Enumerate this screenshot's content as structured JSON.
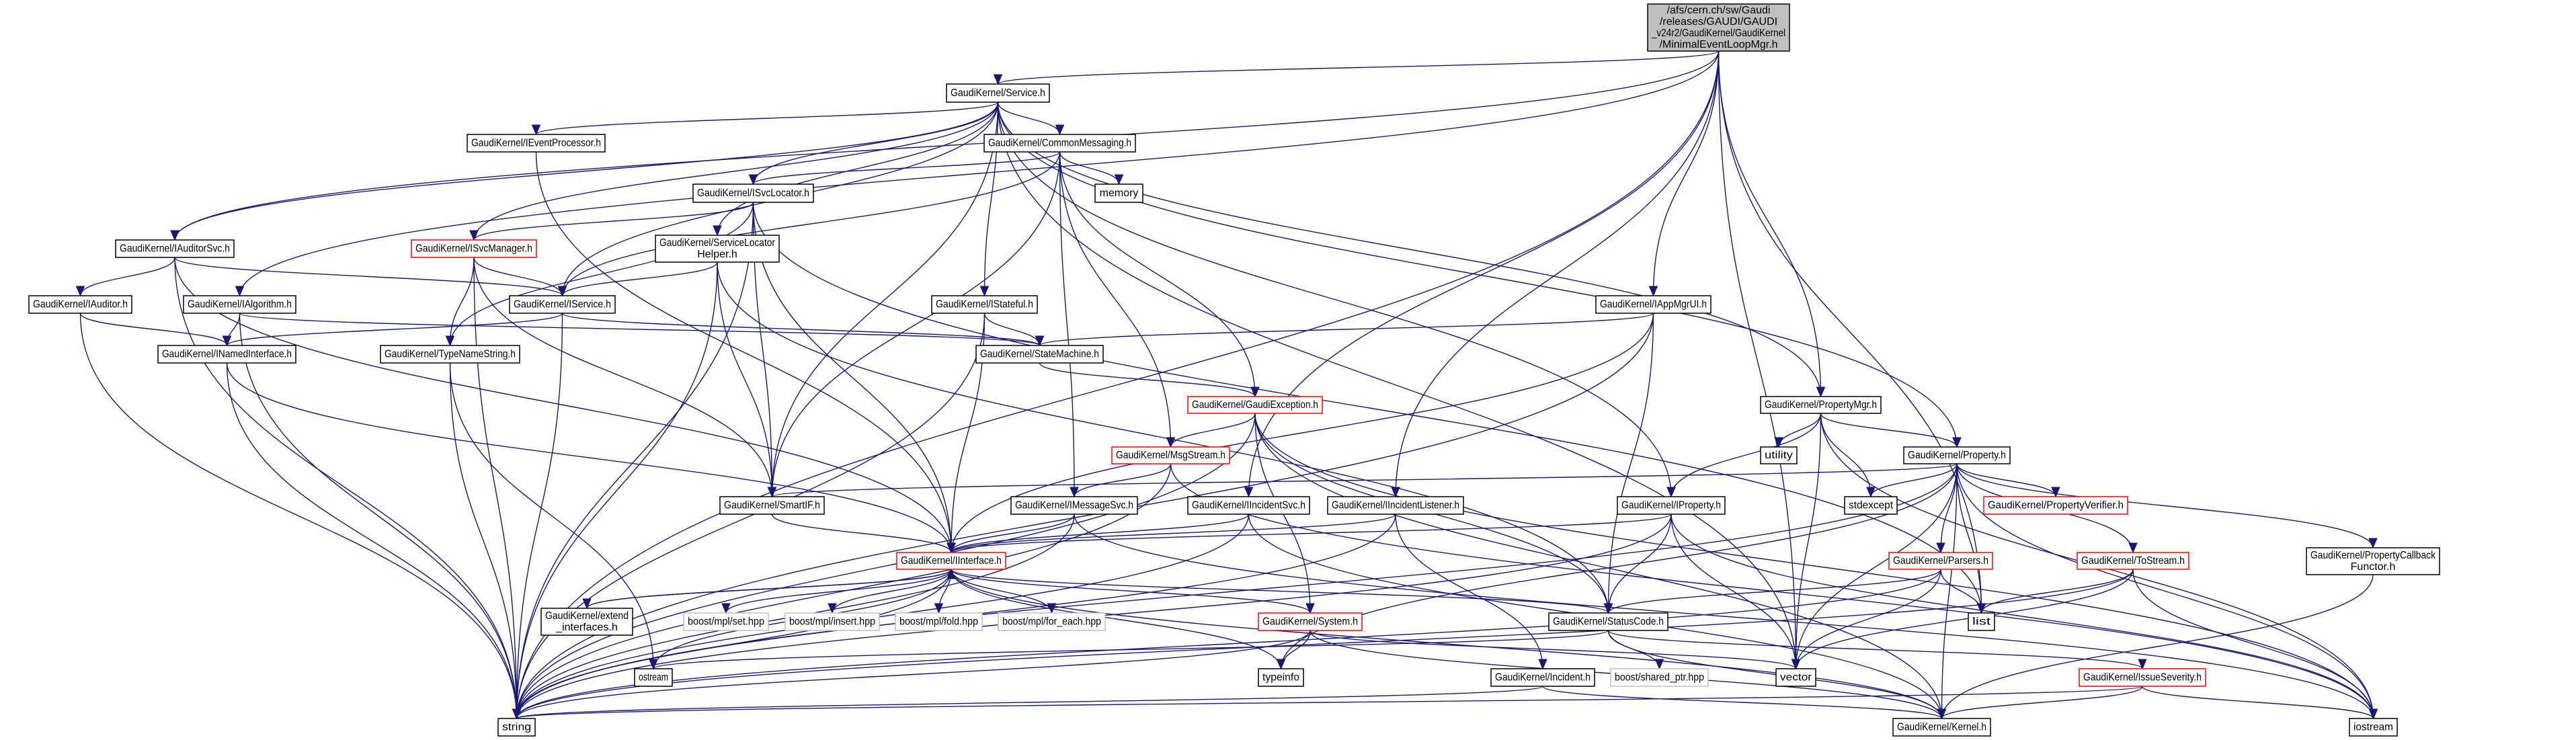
{
  "colors": {
    "edge": "#191970",
    "border": "#000000",
    "red_border": "#ff0000",
    "gray_border": "#bfbfbf",
    "root_fill": "#bfbfbf"
  },
  "nodes": {
    "root": {
      "lines": [
        "/afs/cern.ch/sw/Gaudi",
        "/releases/GAUDI/GAUDI",
        "_v24r2/GaudiKernel/GaudiKernel",
        "/MinimalEventLoopMgr.h"
      ],
      "style": "root"
    },
    "service": {
      "lines": [
        "GaudiKernel/Service.h"
      ],
      "style": "normal"
    },
    "ieventprocessor": {
      "lines": [
        "GaudiKernel/IEventProcessor.h"
      ],
      "style": "normal"
    },
    "commonmessaging": {
      "lines": [
        "GaudiKernel/CommonMessaging.h"
      ],
      "style": "normal"
    },
    "isvclocator": {
      "lines": [
        "GaudiKernel/ISvcLocator.h"
      ],
      "style": "normal"
    },
    "memory": {
      "lines": [
        "memory"
      ],
      "style": "normal"
    },
    "iauditorsvc": {
      "lines": [
        "GaudiKernel/IAuditorSvc.h"
      ],
      "style": "normal"
    },
    "isvcmanager": {
      "lines": [
        "GaudiKernel/ISvcManager.h"
      ],
      "style": "red"
    },
    "servicelocatorhelper": {
      "lines": [
        "GaudiKernel/ServiceLocator",
        "Helper.h"
      ],
      "style": "normal"
    },
    "iauditor": {
      "lines": [
        "GaudiKernel/IAuditor.h"
      ],
      "style": "normal"
    },
    "ialgorithm": {
      "lines": [
        "GaudiKernel/IAlgorithm.h"
      ],
      "style": "normal"
    },
    "iservice": {
      "lines": [
        "GaudiKernel/IService.h"
      ],
      "style": "normal"
    },
    "istateful": {
      "lines": [
        "GaudiKernel/IStateful.h"
      ],
      "style": "normal"
    },
    "iappmgrui": {
      "lines": [
        "GaudiKernel/IAppMgrUI.h"
      ],
      "style": "normal"
    },
    "inamedinterface": {
      "lines": [
        "GaudiKernel/INamedInterface.h"
      ],
      "style": "normal"
    },
    "typenamestring": {
      "lines": [
        "GaudiKernel/TypeNameString.h"
      ],
      "style": "normal"
    },
    "statemachine": {
      "lines": [
        "GaudiKernel/StateMachine.h"
      ],
      "style": "normal"
    },
    "gaudiexception": {
      "lines": [
        "GaudiKernel/GaudiException.h"
      ],
      "style": "red"
    },
    "propertymgr": {
      "lines": [
        "GaudiKernel/PropertyMgr.h"
      ],
      "style": "normal"
    },
    "msgstream": {
      "lines": [
        "GaudiKernel/MsgStream.h"
      ],
      "style": "red"
    },
    "utility": {
      "lines": [
        "utility"
      ],
      "style": "normal"
    },
    "property": {
      "lines": [
        "GaudiKernel/Property.h"
      ],
      "style": "normal"
    },
    "smartif": {
      "lines": [
        "GaudiKernel/SmartIF.h"
      ],
      "style": "normal"
    },
    "imessagesvc": {
      "lines": [
        "GaudiKernel/IMessageSvc.h"
      ],
      "style": "normal"
    },
    "iincidentsvc": {
      "lines": [
        "GaudiKernel/IIncidentSvc.h"
      ],
      "style": "normal"
    },
    "iincidentlistener": {
      "lines": [
        "GaudiKernel/IIncidentListener.h"
      ],
      "style": "normal"
    },
    "iproperty": {
      "lines": [
        "GaudiKernel/IProperty.h"
      ],
      "style": "normal"
    },
    "stdexcept": {
      "lines": [
        "stdexcept"
      ],
      "style": "normal"
    },
    "propertyverifier": {
      "lines": [
        "GaudiKernel/PropertyVerifier.h"
      ],
      "style": "red"
    },
    "iinterface": {
      "lines": [
        "GaudiKernel/IInterface.h"
      ],
      "style": "red"
    },
    "parsers": {
      "lines": [
        "GaudiKernel/Parsers.h"
      ],
      "style": "red"
    },
    "tostream": {
      "lines": [
        "GaudiKernel/ToStream.h"
      ],
      "style": "red"
    },
    "propertycallbackfunctor": {
      "lines": [
        "GaudiKernel/PropertyCallback",
        "Functor.h"
      ],
      "style": "normal"
    },
    "extend_interfaces": {
      "lines": [
        "GaudiKernel/extend",
        "_interfaces.h"
      ],
      "style": "normal"
    },
    "boost_set": {
      "lines": [
        "boost/mpl/set.hpp"
      ],
      "style": "gray"
    },
    "boost_insert": {
      "lines": [
        "boost/mpl/insert.hpp"
      ],
      "style": "gray"
    },
    "boost_fold": {
      "lines": [
        "boost/mpl/fold.hpp"
      ],
      "style": "gray"
    },
    "boost_for_each": {
      "lines": [
        "boost/mpl/for_each.hpp"
      ],
      "style": "gray"
    },
    "system": {
      "lines": [
        "GaudiKernel/System.h"
      ],
      "style": "red"
    },
    "statuscode": {
      "lines": [
        "GaudiKernel/StatusCode.h"
      ],
      "style": "normal"
    },
    "list": {
      "lines": [
        "list"
      ],
      "style": "normal"
    },
    "ostream": {
      "lines": [
        "ostream"
      ],
      "style": "normal"
    },
    "typeinfo": {
      "lines": [
        "typeinfo"
      ],
      "style": "normal"
    },
    "incident": {
      "lines": [
        "GaudiKernel/Incident.h"
      ],
      "style": "normal"
    },
    "boost_shared_ptr": {
      "lines": [
        "boost/shared_ptr.hpp"
      ],
      "style": "gray"
    },
    "vector": {
      "lines": [
        "vector"
      ],
      "style": "normal"
    },
    "issueseverity": {
      "lines": [
        "GaudiKernel/IssueSeverity.h"
      ],
      "style": "red"
    },
    "string": {
      "lines": [
        "string"
      ],
      "style": "normal"
    },
    "kernel": {
      "lines": [
        "GaudiKernel/Kernel.h"
      ],
      "style": "normal"
    },
    "iostream": {
      "lines": [
        "iostream"
      ],
      "style": "normal"
    }
  },
  "edges": [
    [
      "root",
      "service"
    ],
    [
      "root",
      "iauditorsvc"
    ],
    [
      "root",
      "ialgorithm"
    ],
    [
      "root",
      "iincidentsvc"
    ],
    [
      "root",
      "iincidentlistener"
    ],
    [
      "root",
      "iappmgrui"
    ],
    [
      "root",
      "propertymgr"
    ],
    [
      "root",
      "list"
    ],
    [
      "root",
      "vector"
    ],
    [
      "root",
      "string"
    ],
    [
      "service",
      "ieventprocessor"
    ],
    [
      "service",
      "iauditorsvc"
    ],
    [
      "service",
      "isvclocator"
    ],
    [
      "service",
      "commonmessaging"
    ],
    [
      "service",
      "istateful"
    ],
    [
      "service",
      "servicelocatorhelper"
    ],
    [
      "service",
      "iservice"
    ],
    [
      "service",
      "smartif"
    ],
    [
      "service",
      "propertymgr"
    ],
    [
      "service",
      "property"
    ],
    [
      "service",
      "iproperty"
    ],
    [
      "service",
      "vector"
    ],
    [
      "service",
      "isvcmanager"
    ],
    [
      "commonmessaging",
      "isvclocator"
    ],
    [
      "commonmessaging",
      "memory"
    ],
    [
      "commonmessaging",
      "msgstream"
    ],
    [
      "commonmessaging",
      "imessagesvc"
    ],
    [
      "commonmessaging",
      "gaudiexception"
    ],
    [
      "commonmessaging",
      "smartif"
    ],
    [
      "commonmessaging",
      "iservice"
    ],
    [
      "isvclocator",
      "isvcmanager"
    ],
    [
      "isvclocator",
      "iinterface"
    ],
    [
      "isvclocator",
      "smartif"
    ],
    [
      "isvclocator",
      "string"
    ],
    [
      "isvclocator",
      "typenamestring"
    ],
    [
      "isvclocator",
      "list"
    ],
    [
      "isvcmanager",
      "iservice"
    ],
    [
      "isvcmanager",
      "typenamestring"
    ],
    [
      "isvcmanager",
      "smartif"
    ],
    [
      "isvcmanager",
      "string"
    ],
    [
      "iauditorsvc",
      "iauditor"
    ],
    [
      "iauditorsvc",
      "iservice"
    ],
    [
      "iauditorsvc",
      "string"
    ],
    [
      "iauditorsvc",
      "iinterface"
    ],
    [
      "iauditor",
      "inamedinterface"
    ],
    [
      "iauditor",
      "string"
    ],
    [
      "ialgorithm",
      "inamedinterface"
    ],
    [
      "ialgorithm",
      "statemachine"
    ],
    [
      "ialgorithm",
      "string"
    ],
    [
      "iservice",
      "inamedinterface"
    ],
    [
      "iservice",
      "statemachine"
    ],
    [
      "iservice",
      "string"
    ],
    [
      "servicelocatorhelper",
      "iservice"
    ],
    [
      "servicelocatorhelper",
      "smartif"
    ],
    [
      "servicelocatorhelper",
      "string"
    ],
    [
      "servicelocatorhelper",
      "statuscode"
    ],
    [
      "istateful",
      "statemachine"
    ],
    [
      "istateful",
      "iinterface"
    ],
    [
      "istateful",
      "string"
    ],
    [
      "iappmgrui",
      "statemachine"
    ],
    [
      "iappmgrui",
      "iinterface"
    ],
    [
      "iappmgrui",
      "statuscode"
    ],
    [
      "iappmgrui",
      "string"
    ],
    [
      "inamedinterface",
      "iinterface"
    ],
    [
      "inamedinterface",
      "string"
    ],
    [
      "typenamestring",
      "string"
    ],
    [
      "typenamestring",
      "ostream"
    ],
    [
      "ieventprocessor",
      "iinterface"
    ],
    [
      "statemachine",
      "gaudiexception"
    ],
    [
      "gaudiexception",
      "msgstream"
    ],
    [
      "gaudiexception",
      "statuscode"
    ],
    [
      "gaudiexception",
      "system"
    ],
    [
      "gaudiexception",
      "string"
    ],
    [
      "gaudiexception",
      "iostream"
    ],
    [
      "gaudiexception",
      "kernel"
    ],
    [
      "msgstream",
      "imessagesvc"
    ],
    [
      "msgstream",
      "string"
    ],
    [
      "msgstream",
      "iostream"
    ],
    [
      "smartif",
      "iinterface"
    ],
    [
      "imessagesvc",
      "iinterface"
    ],
    [
      "imessagesvc",
      "string"
    ],
    [
      "imessagesvc",
      "iostream"
    ],
    [
      "iincidentsvc",
      "iinterface"
    ],
    [
      "iincidentsvc",
      "string"
    ],
    [
      "iincidentsvc",
      "kernel"
    ],
    [
      "iincidentlistener",
      "iinterface"
    ],
    [
      "iincidentlistener",
      "incident"
    ],
    [
      "iincidentlistener",
      "string"
    ],
    [
      "iproperty",
      "iinterface"
    ],
    [
      "iproperty",
      "statuscode"
    ],
    [
      "iproperty",
      "vector"
    ],
    [
      "iproperty",
      "string"
    ],
    [
      "iproperty",
      "iostream"
    ],
    [
      "propertymgr",
      "iproperty"
    ],
    [
      "propertymgr",
      "property"
    ],
    [
      "propertymgr",
      "utility"
    ],
    [
      "propertymgr",
      "stdexcept"
    ],
    [
      "propertymgr",
      "vector"
    ],
    [
      "propertymgr",
      "iostream"
    ],
    [
      "property",
      "stdexcept"
    ],
    [
      "property",
      "propertyverifier"
    ],
    [
      "property",
      "parsers"
    ],
    [
      "property",
      "tostream"
    ],
    [
      "property",
      "propertycallbackfunctor"
    ],
    [
      "property",
      "smartif"
    ],
    [
      "property",
      "string"
    ],
    [
      "property",
      "vector"
    ],
    [
      "property",
      "typeinfo"
    ],
    [
      "property",
      "kernel"
    ],
    [
      "property",
      "iostream"
    ],
    [
      "property",
      "list"
    ],
    [
      "iinterface",
      "boost_set"
    ],
    [
      "iinterface",
      "boost_insert"
    ],
    [
      "iinterface",
      "boost_fold"
    ],
    [
      "iinterface",
      "boost_for_each"
    ],
    [
      "iinterface",
      "system"
    ],
    [
      "iinterface",
      "statuscode"
    ],
    [
      "iinterface",
      "extend_interfaces"
    ],
    [
      "iinterface",
      "ostream"
    ],
    [
      "iinterface",
      "typeinfo"
    ],
    [
      "iinterface",
      "kernel"
    ],
    [
      "iinterface",
      "string"
    ],
    [
      "extend_interfaces",
      "iinterface"
    ],
    [
      "system",
      "typeinfo"
    ],
    [
      "system",
      "vector"
    ],
    [
      "system",
      "string"
    ],
    [
      "system",
      "kernel"
    ],
    [
      "statuscode",
      "issueseverity"
    ],
    [
      "statuscode",
      "boost_shared_ptr"
    ],
    [
      "statuscode",
      "ostream"
    ],
    [
      "statuscode",
      "kernel"
    ],
    [
      "parsers",
      "statuscode"
    ],
    [
      "parsers",
      "vector"
    ],
    [
      "parsers",
      "list"
    ],
    [
      "parsers",
      "string"
    ],
    [
      "tostream",
      "list"
    ],
    [
      "tostream",
      "vector"
    ],
    [
      "tostream",
      "string"
    ],
    [
      "tostream",
      "iostream"
    ],
    [
      "propertycallbackfunctor",
      "kernel"
    ],
    [
      "issueseverity",
      "string"
    ],
    [
      "issueseverity",
      "kernel"
    ],
    [
      "issueseverity",
      "iostream"
    ],
    [
      "incident",
      "string"
    ],
    [
      "incident",
      "kernel"
    ]
  ]
}
